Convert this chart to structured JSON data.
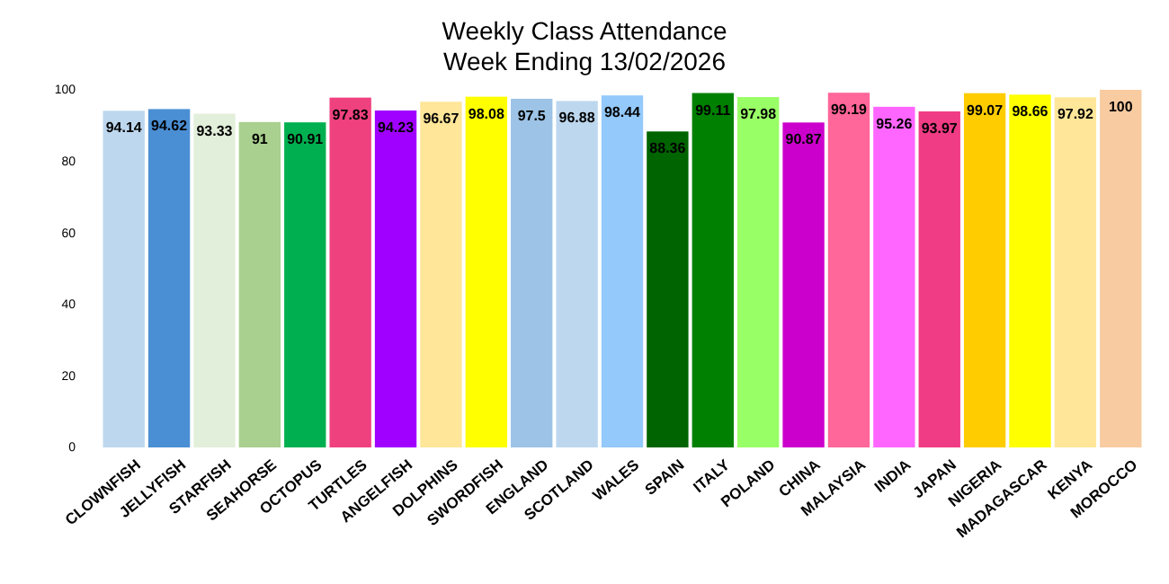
{
  "chart_data": {
    "type": "bar",
    "title": "Weekly Class Attendance",
    "subtitle": "Week Ending 13/02/2026",
    "categories": [
      "CLOWNFISH",
      "JELLYFISH",
      "STARFISH",
      "SEAHORSE",
      "OCTOPUS",
      "TURTLES",
      "ANGELFISH",
      "DOLPHINS",
      "SWORDFISH",
      "ENGLAND",
      "SCOTLAND",
      "WALES",
      "SPAIN",
      "ITALY",
      "POLAND",
      "CHINA",
      "MALAYSIA",
      "INDIA",
      "JAPAN",
      "NIGERIA",
      "MADAGASCAR",
      "KENYA",
      "MOROCCO"
    ],
    "values": [
      94.14,
      94.62,
      93.33,
      91,
      90.91,
      97.83,
      94.23,
      96.67,
      98.08,
      97.5,
      96.88,
      98.44,
      88.36,
      99.11,
      97.98,
      90.87,
      99.19,
      95.26,
      93.97,
      99.07,
      98.66,
      97.92,
      100
    ],
    "colors": [
      "#bdd7ee",
      "#4a8fd4",
      "#e2efda",
      "#a9d08e",
      "#00b050",
      "#f0417f",
      "#a000ff",
      "#ffe699",
      "#ffff00",
      "#9dc3e6",
      "#bdd7ee",
      "#94c9fb",
      "#006400",
      "#008000",
      "#99ff66",
      "#cc00cc",
      "#ff6699",
      "#ff66ff",
      "#f03c84",
      "#ffcc00",
      "#ffff00",
      "#ffe699",
      "#f8cba0"
    ],
    "ylim": [
      0,
      100
    ],
    "yticks": [
      0,
      20,
      40,
      60,
      80,
      100
    ],
    "data_labels": true,
    "grid": false
  }
}
